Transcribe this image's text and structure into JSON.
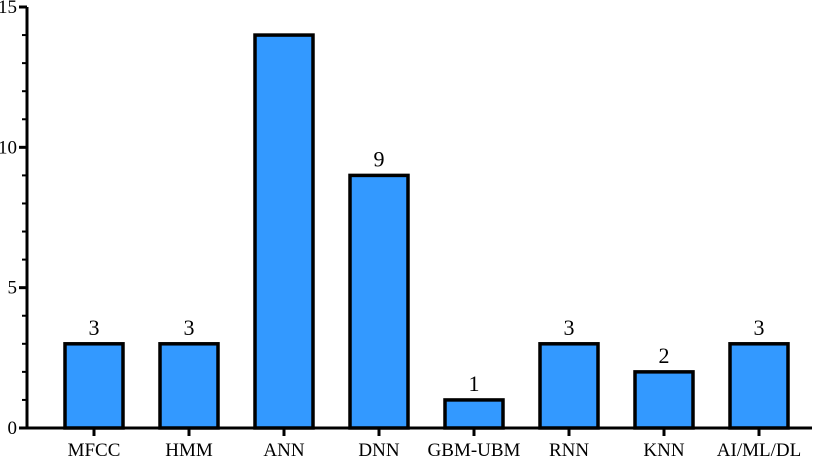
{
  "chart_data": {
    "type": "bar",
    "title": "",
    "xlabel": "",
    "ylabel": "",
    "ylim": [
      0,
      15
    ],
    "yticks": [
      0,
      5,
      10,
      15
    ],
    "categories": [
      "MFCC",
      "HMM",
      "ANN",
      "DNN",
      "GBM-UBM",
      "RNN",
      "KNN",
      "AI/ML/DL"
    ],
    "values": [
      3,
      3,
      14,
      9,
      1,
      3,
      2,
      3
    ],
    "data_labels": [
      "3",
      "3",
      "",
      "9",
      "1",
      "3",
      "2",
      "3"
    ],
    "bar_color": "#3399ff",
    "bar_edge_color": "#000000",
    "grid": false,
    "legend": "none"
  }
}
